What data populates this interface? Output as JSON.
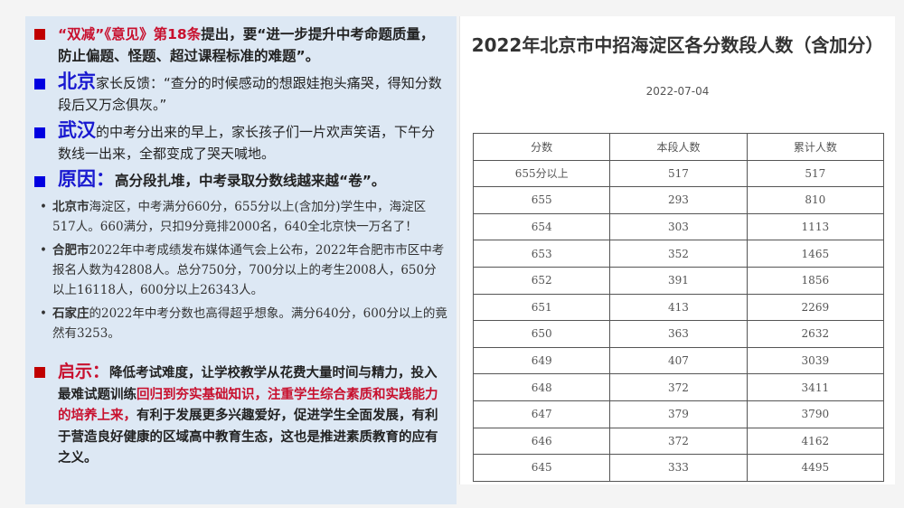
{
  "left": {
    "p1": {
      "red": "“双减”《意见》第18条",
      "text": "提出，要“进一步提升中考命题质量，防止偏题、怪题、超过课程标准的难题”。"
    },
    "p2": {
      "city": "北京",
      "text": "家长反馈：“查分的时候感动的想跟娃抱头痛哭，得知分数段后又万念俱灰。”"
    },
    "p3": {
      "city": "武汉",
      "text": "的中考分出来的早上，家长孩子们一片欢声笑语，下午分数线一出来，全都变成了哭天喊地。"
    },
    "p4": {
      "label": "原因：",
      "text": "高分段扎堆，中考录取分数线越来越“卷”。"
    },
    "bullets": [
      {
        "bold": "北京市",
        "text": "海淀区，中考满分660分，655分以上(含加分)学生中，海淀区517人。660满分，只扣9分竟排2000名，640全北京快一万名了！"
      },
      {
        "bold": "合肥市",
        "text": "2022年中考成绩发布媒体通气会上公布，2022年合肥市市区中考报名人数为42808人。总分750分，700分以上的考生2008人，650分以上16118人，600分以上26343人。"
      },
      {
        "bold": "石家庄",
        "text": "的2022年中考分数也高得超乎想象。满分640分，600分以上的竟然有3253。"
      }
    ],
    "p5": {
      "label": "启示：",
      "text1": "降低考试难度，让学校教学从花费大量时间与精力，投入最难试题训练",
      "red": "回归到夯实基础知识，注重学生综合素质和实践能力的培养上来，",
      "text2": "有利于发展更多兴趣爱好，促进学生全面发展，有利于营造良好健康的区域高中教育生态，这也是推进素质教育的应有之义。"
    }
  },
  "right": {
    "title": "2022年北京市中招海淀区各分数段人数（含加分）",
    "date": "2022-07-04",
    "headers": [
      "分数",
      "本段人数",
      "累计人数"
    ],
    "rows": [
      [
        "655分以上",
        "517",
        "517"
      ],
      [
        "655",
        "293",
        "810"
      ],
      [
        "654",
        "303",
        "1113"
      ],
      [
        "653",
        "352",
        "1465"
      ],
      [
        "652",
        "391",
        "1856"
      ],
      [
        "651",
        "413",
        "2269"
      ],
      [
        "650",
        "363",
        "2632"
      ],
      [
        "649",
        "407",
        "3039"
      ],
      [
        "648",
        "372",
        "3411"
      ],
      [
        "647",
        "379",
        "3790"
      ],
      [
        "646",
        "372",
        "4162"
      ],
      [
        "645",
        "333",
        "4495"
      ]
    ]
  },
  "colors": {
    "accent_red": "#c8102e",
    "accent_blue": "#1818d0",
    "panel": "#dde8f4"
  }
}
